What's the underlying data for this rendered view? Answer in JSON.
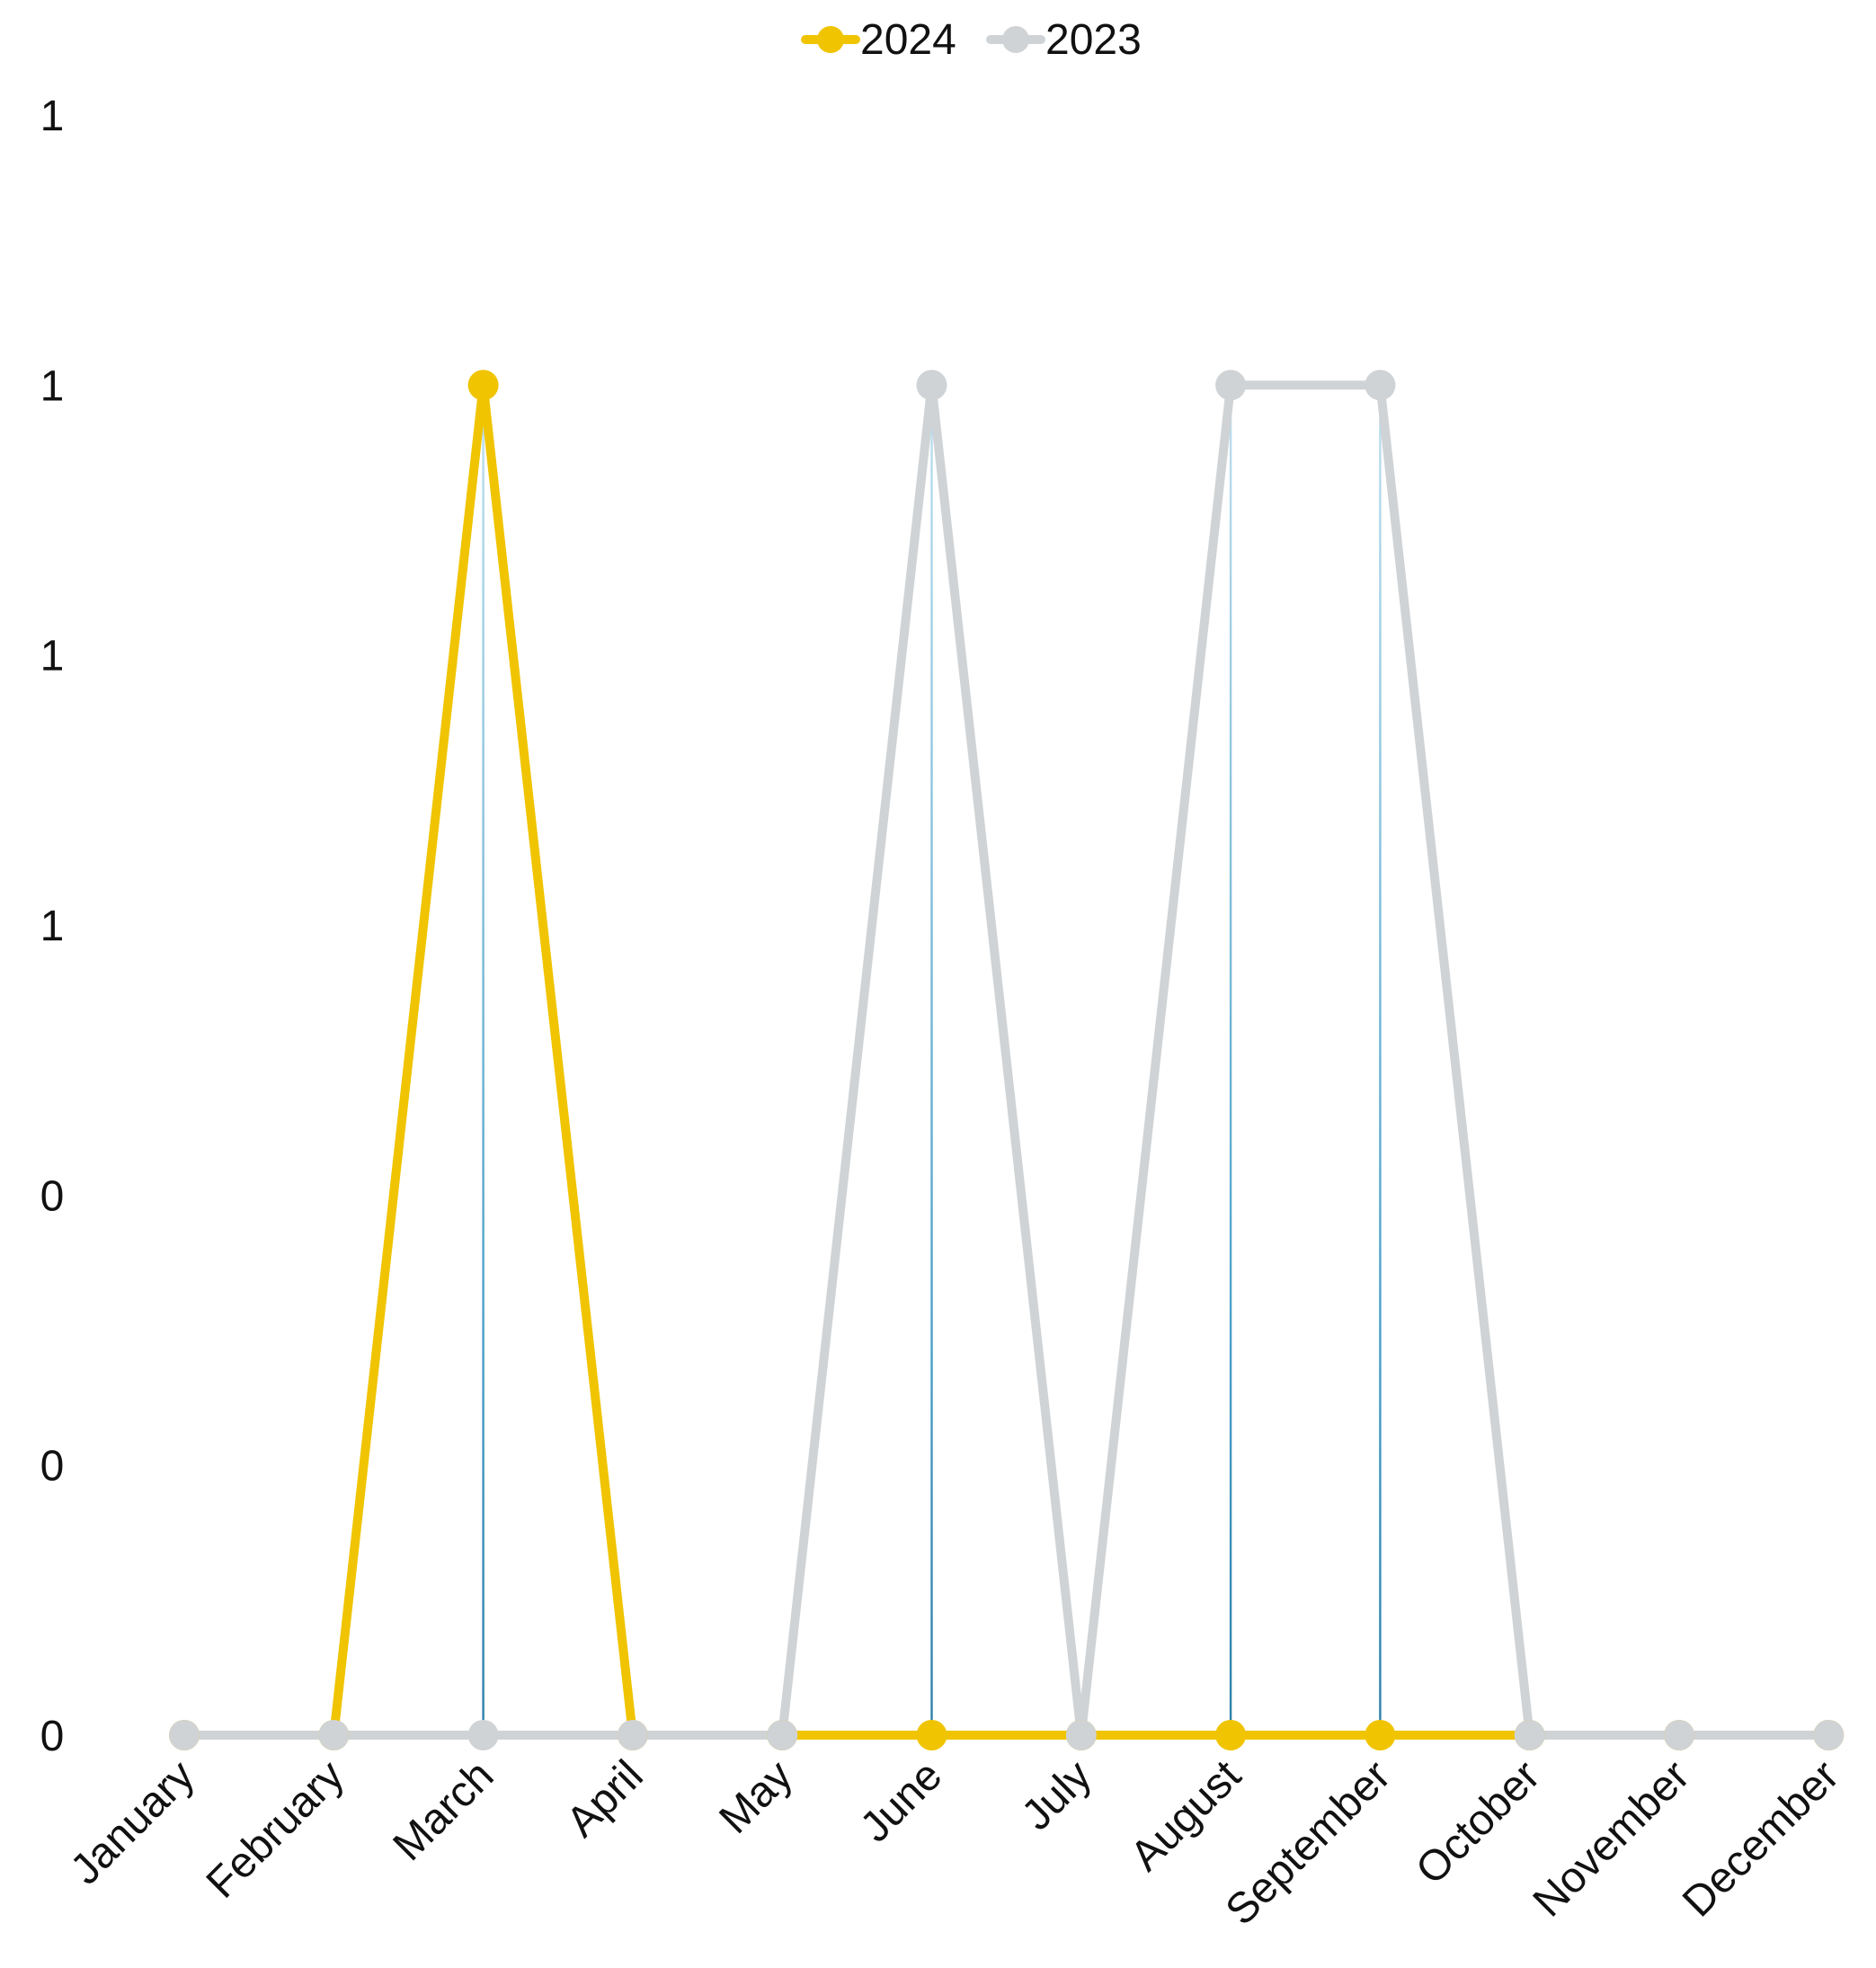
{
  "chart_data": {
    "type": "line",
    "categories": [
      "January",
      "February",
      "March",
      "April",
      "May",
      "June",
      "July",
      "August",
      "September",
      "October",
      "November",
      "December"
    ],
    "series": [
      {
        "name": "2024",
        "color": "#f0c400",
        "values": [
          0,
          0,
          1,
          0,
          0,
          0,
          0,
          0,
          0,
          0,
          0,
          0
        ]
      },
      {
        "name": "2023",
        "color": "#d0d3d5",
        "values": [
          0,
          0,
          0,
          0,
          0,
          1,
          0,
          1,
          1,
          0,
          0,
          0
        ]
      }
    ],
    "y_tick_labels": [
      "0",
      "0",
      "0",
      "1",
      "1",
      "1",
      "1"
    ],
    "ylim": [
      0,
      1.2
    ],
    "y_ticks": [
      0,
      0.2,
      0.4,
      0.6,
      0.8,
      1.0,
      1.2
    ],
    "legend_position": "top-center",
    "drop_line_color": "#4a9fc8",
    "grid": false
  }
}
